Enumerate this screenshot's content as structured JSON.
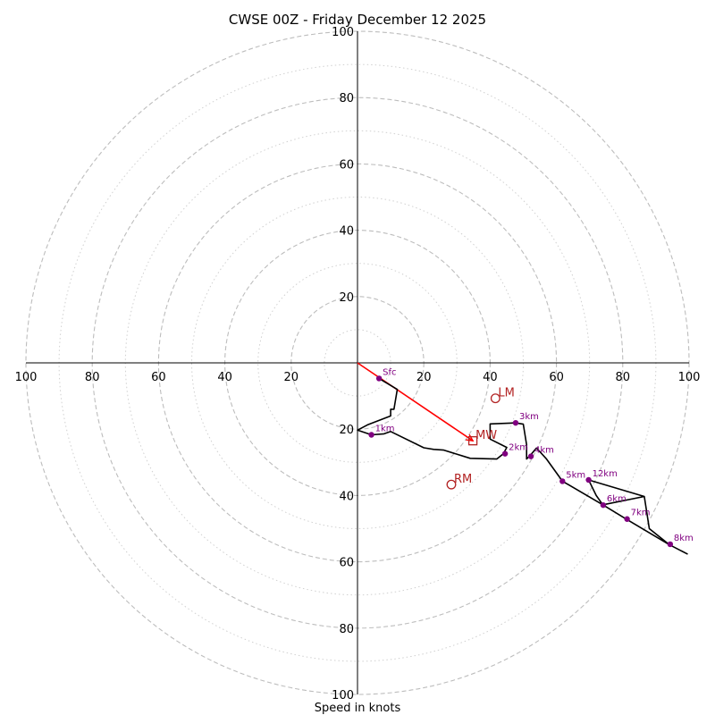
{
  "chart_data": {
    "type": "hodograph",
    "title": "CWSE 00Z - Friday December 12 2025",
    "xlabel": "Speed in knots",
    "axis_range": [
      -100,
      100
    ],
    "x_tick_labels": [
      "100",
      "80",
      "60",
      "40",
      "20",
      "20",
      "40",
      "60",
      "80",
      "100"
    ],
    "x_tick_values": [
      -100,
      -80,
      -60,
      -40,
      -20,
      20,
      40,
      60,
      80,
      100
    ],
    "y_tick_labels_top": [
      "20",
      "40",
      "60",
      "80",
      "100"
    ],
    "y_tick_values_top": [
      20,
      40,
      60,
      80,
      100
    ],
    "y_tick_labels_bottom": [
      "20",
      "40",
      "60",
      "80",
      "100"
    ],
    "y_tick_values_bottom": [
      -20,
      -40,
      -60,
      -80,
      -100
    ],
    "major_rings": [
      20,
      40,
      60,
      80,
      100
    ],
    "minor_rings": [
      10,
      30,
      50,
      70,
      90
    ],
    "colors": {
      "trace": "#000000",
      "heights": "#800080",
      "motion": "#b22222",
      "shear": "#ff0000",
      "ring_major": "#bdbdbd",
      "ring_minor": "#d0d0d0"
    },
    "trace": [
      [
        6.5,
        -4.7
      ],
      [
        12,
        -8
      ],
      [
        11,
        -14
      ],
      [
        10,
        -14
      ],
      [
        10,
        -16
      ],
      [
        3,
        -18.7
      ],
      [
        0,
        -20.3
      ],
      [
        4.2,
        -21.7
      ],
      [
        8,
        -21.4
      ],
      [
        10,
        -20.7
      ],
      [
        20,
        -25.6
      ],
      [
        23,
        -26.1
      ],
      [
        26,
        -26.3
      ],
      [
        34,
        -28.8
      ],
      [
        42,
        -29
      ],
      [
        44,
        -27.4
      ],
      [
        45,
        -25.5
      ],
      [
        40,
        -23
      ],
      [
        40,
        -18.4
      ],
      [
        47.7,
        -18.1
      ],
      [
        50,
        -18.5
      ],
      [
        51,
        -24.7
      ],
      [
        51,
        -29
      ],
      [
        52,
        -28
      ],
      [
        54,
        -25.7
      ],
      [
        57,
        -29
      ],
      [
        61.8,
        -35.7
      ],
      [
        74,
        -42.8
      ],
      [
        81,
        -47.1
      ],
      [
        94,
        -54.8
      ],
      [
        99.6,
        -57.7
      ]
    ],
    "trace_upper": [
      [
        69.7,
        -35.3
      ],
      [
        72,
        -40
      ],
      [
        74,
        -42.8
      ],
      [
        86.5,
        -40.3
      ],
      [
        74,
        -42.8
      ],
      [
        86.5,
        -40.3
      ],
      [
        69.7,
        -35.3
      ],
      [
        86.5,
        -40.3
      ],
      [
        88,
        -50
      ],
      [
        94,
        -54.8
      ]
    ],
    "height_markers": [
      {
        "label": "Sfc",
        "u": 6.5,
        "v": -4.7
      },
      {
        "label": "1km",
        "u": 4.2,
        "v": -21.7
      },
      {
        "label": "2km",
        "u": 44.5,
        "v": -27.4
      },
      {
        "label": "3km",
        "u": 47.7,
        "v": -18.1
      },
      {
        "label": "4km",
        "u": 52.3,
        "v": -28.2
      },
      {
        "label": "5km",
        "u": 61.8,
        "v": -35.7
      },
      {
        "label": "12km",
        "u": 69.7,
        "v": -35.3
      },
      {
        "label": "6km",
        "u": 74.1,
        "v": -42.9
      },
      {
        "label": "7km",
        "u": 81.3,
        "v": -47.1
      },
      {
        "label": "8km",
        "u": 94.3,
        "v": -54.7
      }
    ],
    "storm_motion": [
      {
        "label": "LM",
        "u": 41.6,
        "v": -10.7,
        "marker": "circle"
      },
      {
        "label": "MW",
        "u": 34.8,
        "v": -23.5,
        "marker": "square"
      },
      {
        "label": "RM",
        "u": 28.3,
        "v": -36.7,
        "marker": "circle"
      }
    ],
    "shear_vector": {
      "from": [
        0,
        0
      ],
      "to": [
        34.8,
        -23.5
      ]
    }
  }
}
